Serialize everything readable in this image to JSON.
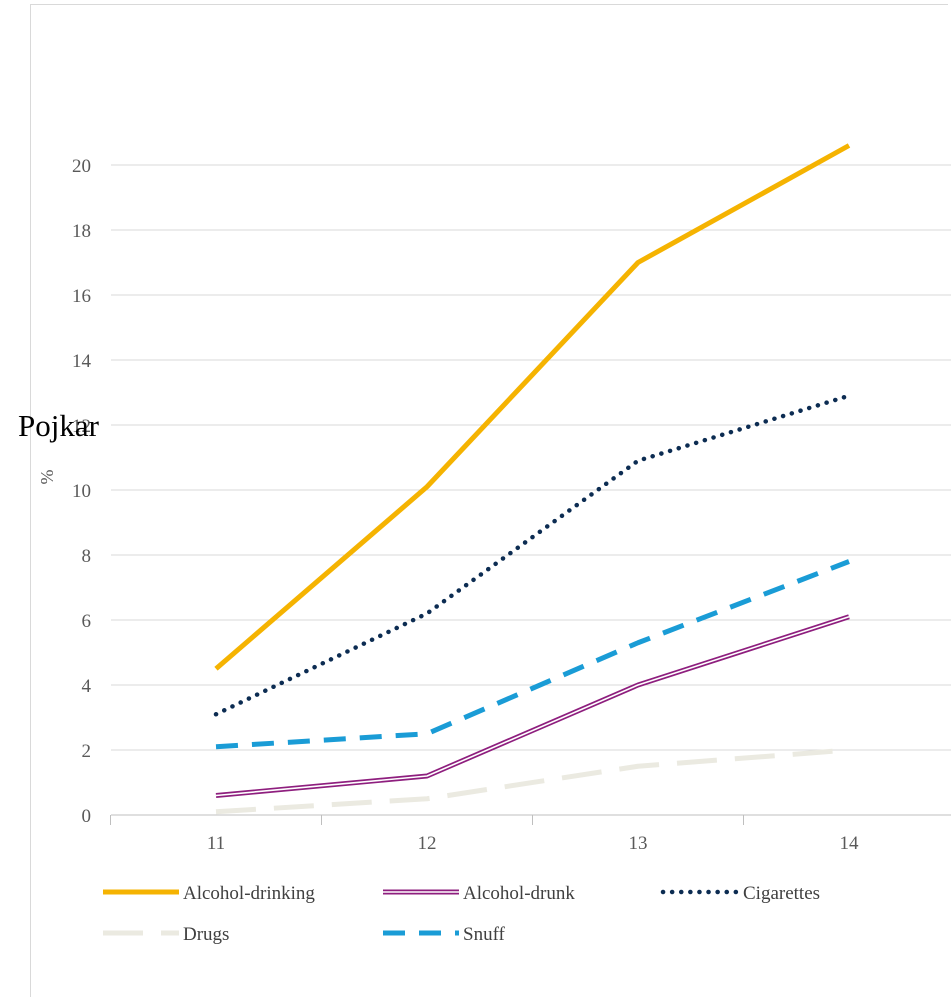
{
  "chart_data": {
    "type": "line",
    "title": "Pojkar",
    "ylabel": "%",
    "xlabel": "",
    "x": [
      "11",
      "12",
      "13",
      "14"
    ],
    "ylim": [
      0,
      22
    ],
    "yticks": [
      0,
      2,
      4,
      6,
      8,
      10,
      12,
      14,
      16,
      18,
      20
    ],
    "grid": true,
    "legend_position": "bottom",
    "series": [
      {
        "name": "Alcohol-drinking",
        "values": [
          4.5,
          10.1,
          17.0,
          20.6
        ],
        "color": "#f5b301",
        "style": "solid-thick"
      },
      {
        "name": "Alcohol-drunk",
        "values": [
          0.6,
          1.2,
          4.0,
          6.1
        ],
        "color": "#8e1e7e",
        "style": "double"
      },
      {
        "name": "Cigarettes",
        "values": [
          3.1,
          6.2,
          10.9,
          12.9
        ],
        "color": "#0c2c52",
        "style": "dotted"
      },
      {
        "name": "Drugs",
        "values": [
          0.1,
          0.5,
          1.5,
          2.0
        ],
        "color": "#ebeae1",
        "style": "long-dash"
      },
      {
        "name": "Snuff",
        "values": [
          2.1,
          2.5,
          5.3,
          7.8
        ],
        "color": "#1a9cd6",
        "style": "dashed"
      }
    ]
  }
}
